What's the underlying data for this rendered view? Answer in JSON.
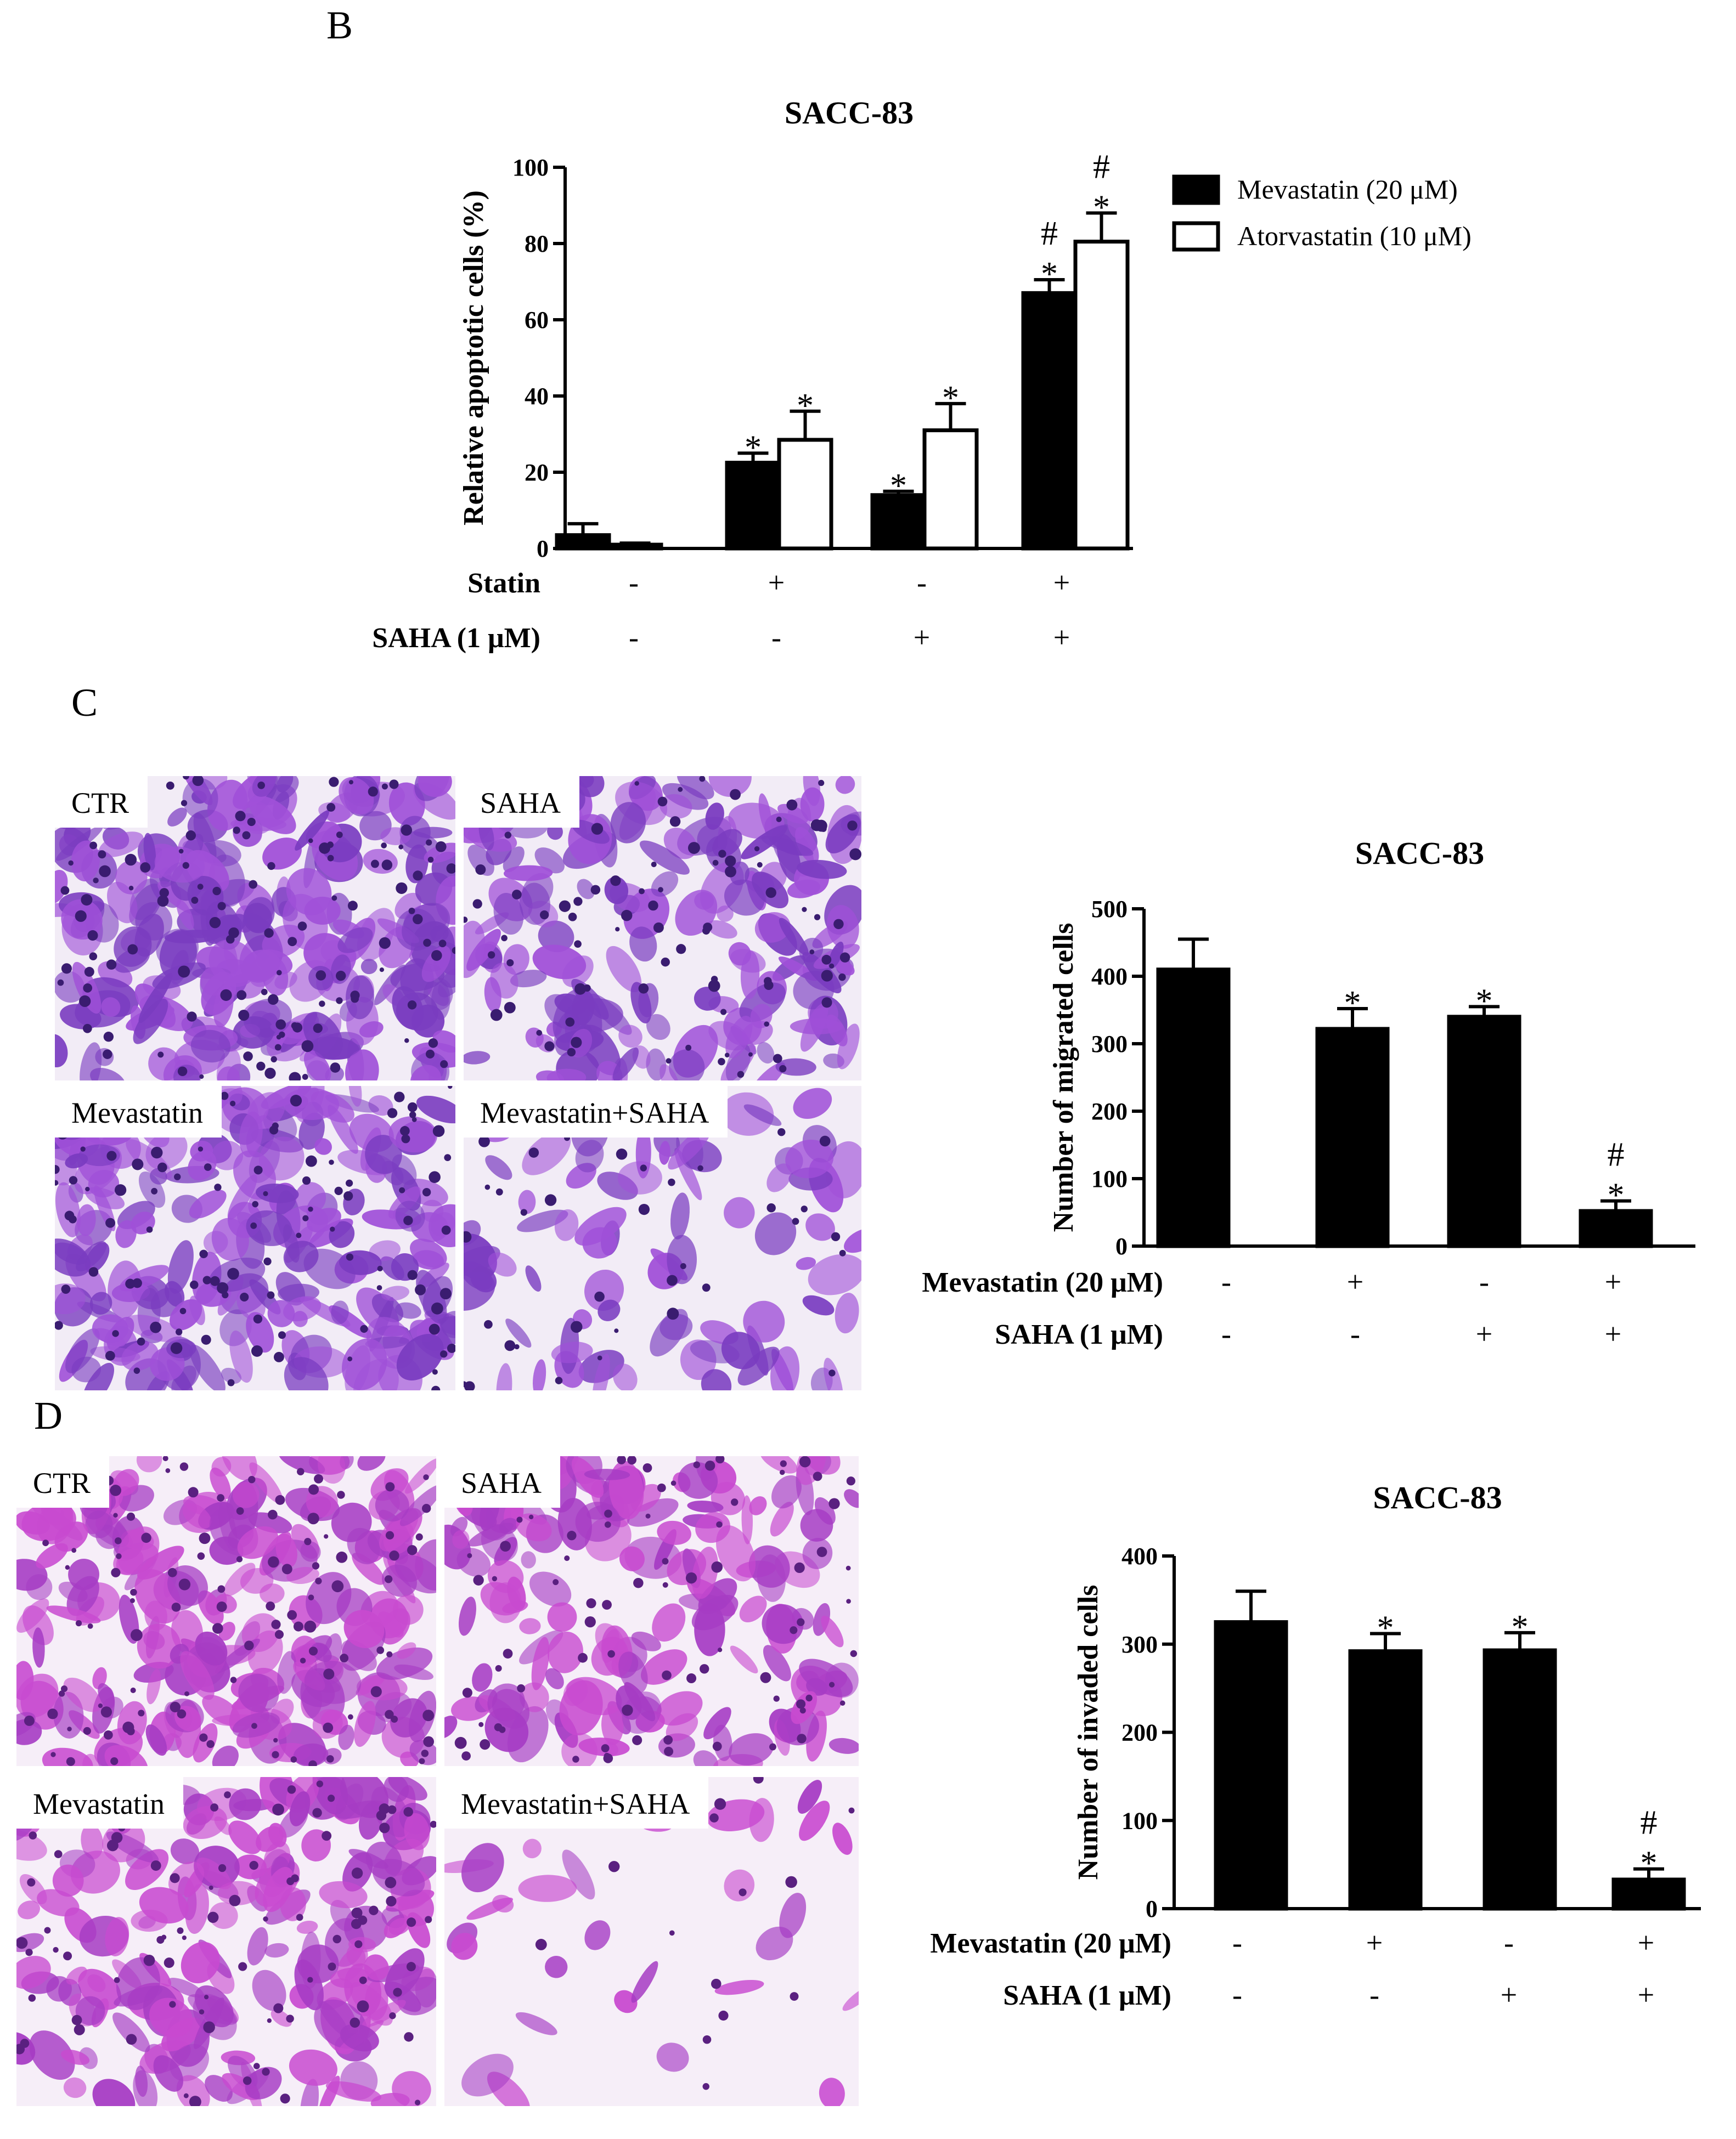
{
  "panels": {
    "B": "B",
    "C": "C",
    "D": "D"
  },
  "chart_data": [
    {
      "id": "B",
      "type": "bar",
      "title": "SACC-83",
      "ylabel": "Relative apoptotic cells (%)",
      "ylim": [
        0,
        100
      ],
      "yticks": [
        0,
        20,
        40,
        60,
        80,
        100
      ],
      "series": [
        {
          "name": "Mevastatin (20 μM)",
          "fill": "#000000",
          "values": [
            3.5,
            22.5,
            14,
            67
          ],
          "errors": [
            3,
            2.5,
            1,
            3.5
          ],
          "annotations": [
            "",
            "*",
            "*",
            "#\n*"
          ]
        },
        {
          "name": "Atorvastatin (10 μM)",
          "fill": "#ffffff",
          "values": [
            1,
            28.5,
            31,
            80.5
          ],
          "errors": [
            0.4,
            7.5,
            7,
            7.5
          ],
          "annotations": [
            "",
            "*",
            "*",
            "#\n*"
          ]
        }
      ],
      "factor_rows": [
        {
          "label": "Statin",
          "signs": [
            "-",
            "+",
            "-",
            "+"
          ]
        },
        {
          "label": "SAHA (1 μM)",
          "signs": [
            "-",
            "-",
            "+",
            "+"
          ]
        }
      ],
      "legend_position": "top-right"
    },
    {
      "id": "C",
      "type": "bar",
      "title": "SACC-83",
      "ylabel": "Number of migrated cells",
      "ylim": [
        0,
        500
      ],
      "yticks": [
        0,
        100,
        200,
        300,
        400,
        500
      ],
      "series": [
        {
          "fill": "#000000",
          "values": [
            410,
            322,
            340,
            52
          ],
          "errors": [
            45,
            30,
            15,
            15
          ],
          "annotations": [
            "",
            "*",
            "*",
            "#\n*"
          ]
        }
      ],
      "factor_rows": [
        {
          "label": "Mevastatin (20 μM)",
          "signs": [
            "-",
            "+",
            "-",
            "+"
          ]
        },
        {
          "label": "SAHA (1 μM)",
          "signs": [
            "-",
            "-",
            "+",
            "+"
          ]
        }
      ]
    },
    {
      "id": "D",
      "type": "bar",
      "title": "SACC-83",
      "ylabel": "Number of invaded cells",
      "ylim": [
        0,
        400
      ],
      "yticks": [
        0,
        100,
        200,
        300,
        400
      ],
      "series": [
        {
          "fill": "#000000",
          "values": [
            325,
            292,
            293,
            33
          ],
          "errors": [
            35,
            20,
            20,
            12
          ],
          "annotations": [
            "",
            "*",
            "*",
            "#\n*"
          ]
        }
      ],
      "factor_rows": [
        {
          "label": "Mevastatin (20 μM)",
          "signs": [
            "-",
            "+",
            "-",
            "+"
          ]
        },
        {
          "label": "SAHA (1 μM)",
          "signs": [
            "-",
            "-",
            "+",
            "+"
          ]
        }
      ]
    }
  ],
  "micrographs": {
    "C": [
      {
        "label": "CTR",
        "density": 0.95
      },
      {
        "label": "SAHA",
        "density": 0.65
      },
      {
        "label": "Mevastatin",
        "density": 0.8
      },
      {
        "label": "Mevastatin+SAHA",
        "density": 0.3
      }
    ],
    "D": [
      {
        "label": "CTR",
        "density": 0.85
      },
      {
        "label": "SAHA",
        "density": 0.6
      },
      {
        "label": "Mevastatin",
        "density": 0.7
      },
      {
        "label": "Mevastatin+SAHA",
        "density": 0.12
      }
    ]
  }
}
